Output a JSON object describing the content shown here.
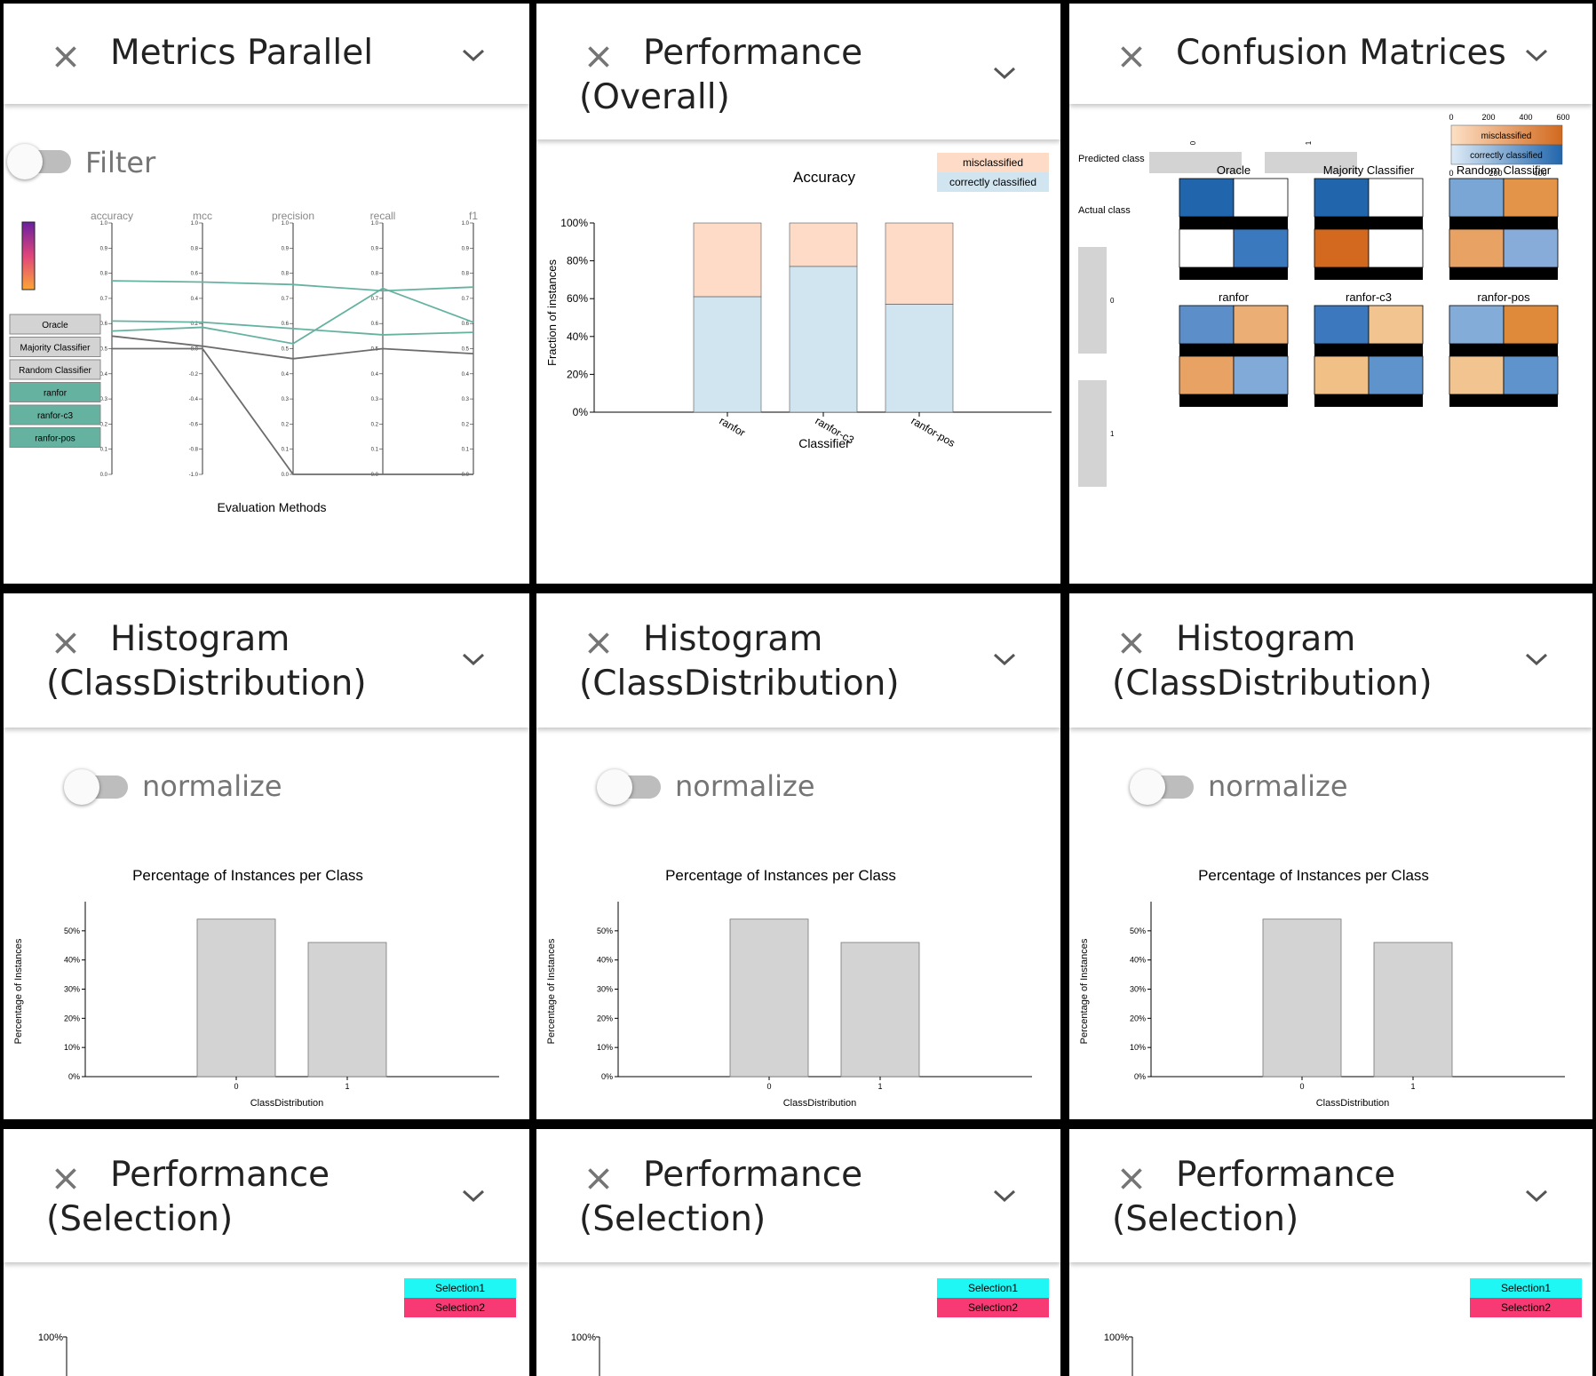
{
  "colors": {
    "misclassified": "#fddbc7",
    "correct": "#d1e5f0",
    "teal": "#66b2a0",
    "gray_line": "#666666",
    "sel1": "#1ef7f4",
    "sel2": "#f73a74"
  },
  "close_icon": "close-icon",
  "chevron_icon": "chevron-down-icon",
  "metrics": {
    "title": "Metrics Parallel",
    "filter_label": "Filter",
    "axes": [
      "accuracy",
      "mcc",
      "precision",
      "recall",
      "f1"
    ],
    "xlabel": "Evaluation Methods",
    "ticks_std": [
      "0.0",
      "0.1",
      "0.2",
      "0.3",
      "0.4",
      "0.5",
      "0.6",
      "0.7",
      "0.8",
      "0.9",
      "1.0"
    ],
    "ticks_mcc": [
      "-1.0",
      "-0.8",
      "-0.6",
      "-0.4",
      "-0.2",
      "0.0",
      "0.2",
      "0.4",
      "0.6",
      "0.8",
      "1.0"
    ],
    "legend": [
      {
        "label": "Oracle",
        "style": "gray"
      },
      {
        "label": "Majority Classifier",
        "style": "gray"
      },
      {
        "label": "Random Classifier",
        "style": "gray"
      },
      {
        "label": "ranfor",
        "style": "teal"
      },
      {
        "label": "ranfor-c3",
        "style": "teal"
      },
      {
        "label": "ranfor-pos",
        "style": "teal"
      }
    ]
  },
  "performance_overall": {
    "title": "Performance (Overall)",
    "legend_mis": "misclassified",
    "legend_correct": "correctly classified",
    "chart_data": {
      "type": "bar",
      "title": "Accuracy",
      "xlabel": "Classifier",
      "ylabel": "Fraction of instances",
      "categories": [
        "ranfor",
        "ranfor-c3",
        "ranfor-pos"
      ],
      "series": [
        {
          "name": "correctly classified",
          "values": [
            0.61,
            0.77,
            0.57
          ]
        },
        {
          "name": "misclassified",
          "values": [
            0.39,
            0.23,
            0.43
          ]
        }
      ],
      "ylim": [
        0,
        1
      ],
      "yticks": [
        "0%",
        "20%",
        "40%",
        "60%",
        "80%",
        "100%"
      ]
    }
  },
  "confusion": {
    "title": "Confusion Matrices",
    "legend_mis": "misclassified",
    "legend_correct": "correctly classified",
    "mis_ticks": [
      "0",
      "200",
      "400",
      "600"
    ],
    "correct_ticks": [
      "0",
      "200",
      "400"
    ],
    "predicted_label": "Predicted class",
    "actual_label": "Actual class",
    "pred_ticks": [
      "0",
      "1"
    ],
    "actual_ticks": [
      "0",
      "1"
    ],
    "matrices": [
      {
        "name": "Oracle",
        "cells": [
          "#2166ac",
          "#ffffff",
          "#ffffff",
          "#3a79bd"
        ]
      },
      {
        "name": "Majority Classifier",
        "cells": [
          "#2166ac",
          "#ffffff",
          "#d2691e",
          "#ffffff"
        ]
      },
      {
        "name": "Random Classifier",
        "cells": [
          "#7aa6d6",
          "#e49448",
          "#e7a264",
          "#87acd9"
        ]
      },
      {
        "name": "ranfor",
        "cells": [
          "#5c8fc9",
          "#ebae74",
          "#e7a264",
          "#82aad8"
        ]
      },
      {
        "name": "ranfor-c3",
        "cells": [
          "#3b78be",
          "#f2c590",
          "#f1c087",
          "#5e93cb"
        ]
      },
      {
        "name": "ranfor-pos",
        "cells": [
          "#84acd9",
          "#df8a3a",
          "#f2c590",
          "#5e93cb"
        ]
      }
    ]
  },
  "histograms": [
    {
      "title": "Histogram (ClassDistribution)",
      "normalize_label": "normalize",
      "chart_data": {
        "type": "bar",
        "title": "Percentage of Instances per Class",
        "xlabel": "ClassDistribution",
        "ylabel": "Percentage of Instances",
        "categories": [
          "0",
          "1"
        ],
        "values": [
          54,
          46
        ],
        "ylim": [
          0,
          60
        ],
        "yticks": [
          "0%",
          "10%",
          "20%",
          "30%",
          "40%",
          "50%"
        ]
      }
    },
    {
      "title": "Histogram (ClassDistribution)",
      "normalize_label": "normalize",
      "chart_data": {
        "type": "bar",
        "title": "Percentage of Instances per Class",
        "xlabel": "ClassDistribution",
        "ylabel": "Percentage of Instances",
        "categories": [
          "0",
          "1"
        ],
        "values": [
          54,
          46
        ],
        "ylim": [
          0,
          60
        ],
        "yticks": [
          "0%",
          "10%",
          "20%",
          "30%",
          "40%",
          "50%"
        ]
      }
    },
    {
      "title": "Histogram (ClassDistribution)",
      "normalize_label": "normalize",
      "chart_data": {
        "type": "bar",
        "title": "Percentage of Instances per Class",
        "xlabel": "ClassDistribution",
        "ylabel": "Percentage of Instances",
        "categories": [
          "0",
          "1"
        ],
        "values": [
          54,
          46
        ],
        "ylim": [
          0,
          60
        ],
        "yticks": [
          "0%",
          "10%",
          "20%",
          "30%",
          "40%",
          "50%"
        ]
      }
    }
  ],
  "selections": [
    {
      "title": "Performance (Selection)",
      "sel1": "Selection1",
      "sel2": "Selection2",
      "ytick": "100%"
    },
    {
      "title": "Performance (Selection)",
      "sel1": "Selection1",
      "sel2": "Selection2",
      "ytick": "100%"
    },
    {
      "title": "Performance (Selection)",
      "sel1": "Selection1",
      "sel2": "Selection2",
      "ytick": "100%"
    }
  ]
}
